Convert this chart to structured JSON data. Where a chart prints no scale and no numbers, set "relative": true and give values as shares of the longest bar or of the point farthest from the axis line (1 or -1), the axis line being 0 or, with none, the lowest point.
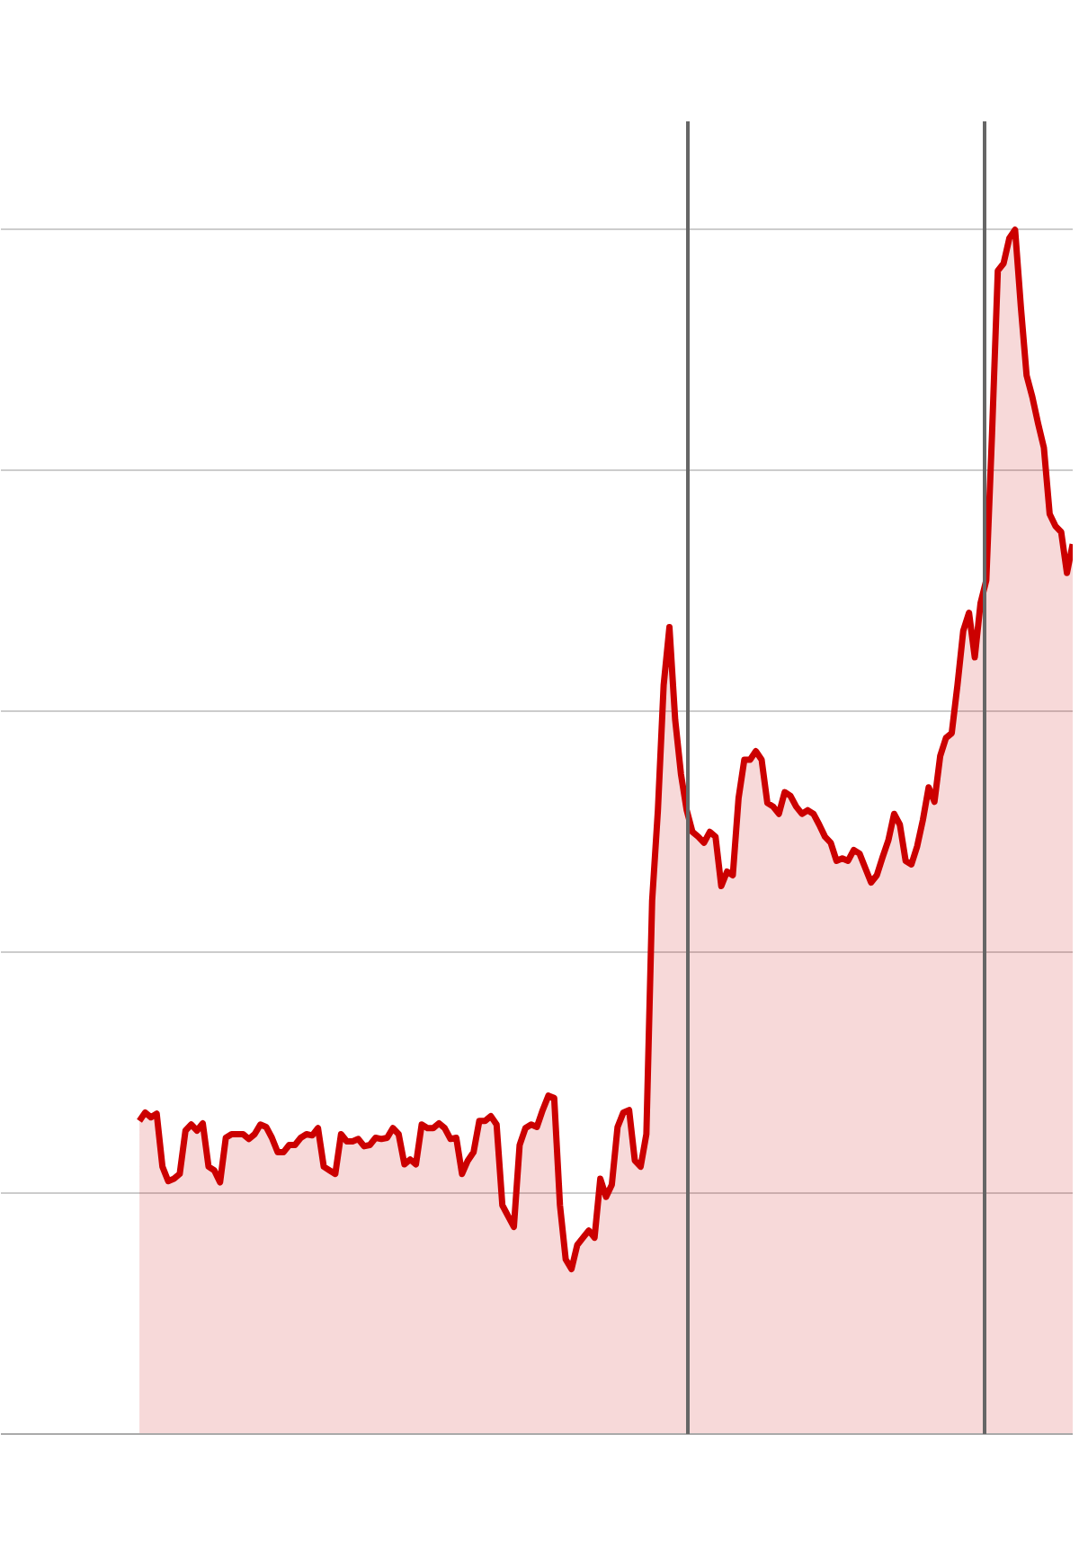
{
  "chart_data": {
    "type": "area",
    "relative": true,
    "grid": "y",
    "categories": [
      null,
      null,
      null,
      null,
      null,
      null,
      null,
      null,
      null,
      null,
      null,
      null,
      null,
      null,
      null,
      null,
      null,
      null,
      null,
      null,
      null,
      null,
      null,
      null,
      null,
      null,
      null,
      null,
      null,
      null,
      null,
      null,
      null,
      null,
      null,
      null,
      null,
      null,
      null,
      null,
      null,
      null,
      null,
      null,
      null,
      null,
      null,
      null,
      null,
      null,
      null,
      null,
      null,
      null,
      null,
      null,
      null,
      null,
      null,
      null,
      null,
      null,
      null,
      null,
      null,
      null,
      null,
      null,
      null,
      null,
      null,
      null,
      null,
      null,
      null,
      null,
      null,
      null,
      null,
      null,
      null,
      null,
      null,
      null,
      null,
      null,
      null,
      null,
      null,
      null,
      null,
      null,
      null,
      null,
      null,
      null,
      null,
      null,
      null,
      null,
      null,
      null,
      null,
      null,
      null,
      null,
      null,
      null,
      null,
      null,
      null,
      null,
      null,
      null,
      null,
      null,
      null,
      null,
      null,
      null,
      null,
      null,
      null,
      null,
      null,
      null,
      null,
      null,
      null,
      null,
      null,
      null,
      null,
      null,
      null,
      null,
      null,
      null,
      null,
      null,
      null,
      null,
      null,
      null,
      null,
      null,
      null,
      null,
      null,
      null,
      null,
      null,
      null,
      null,
      null,
      null,
      null,
      null,
      null,
      null,
      null,
      null,
      null
    ],
    "series": [
      {
        "color": "#cc0000",
        "values": [
          0.26,
          0.267,
          0.263,
          0.266,
          0.222,
          0.21,
          0.212,
          0.216,
          0.252,
          0.257,
          0.252,
          0.258,
          0.222,
          0.219,
          0.209,
          0.246,
          0.249,
          0.249,
          0.249,
          0.245,
          0.249,
          0.257,
          0.255,
          0.246,
          0.234,
          0.234,
          0.24,
          0.24,
          0.246,
          0.249,
          0.248,
          0.254,
          0.222,
          0.219,
          0.216,
          0.249,
          0.243,
          0.243,
          0.245,
          0.239,
          0.24,
          0.246,
          0.245,
          0.246,
          0.254,
          0.249,
          0.224,
          0.228,
          0.224,
          0.257,
          0.254,
          0.254,
          0.258,
          0.254,
          0.245,
          0.246,
          0.216,
          0.227,
          0.234,
          0.26,
          0.26,
          0.264,
          0.257,
          0.19,
          0.181,
          0.172,
          0.24,
          0.254,
          0.257,
          0.255,
          0.269,
          0.281,
          0.279,
          0.19,
          0.145,
          0.137,
          0.157,
          0.163,
          0.169,
          0.163,
          0.212,
          0.197,
          0.207,
          0.255,
          0.267,
          0.269,
          0.227,
          0.222,
          0.249,
          0.443,
          0.518,
          0.622,
          0.67,
          0.593,
          0.548,
          0.518,
          0.5,
          0.496,
          0.491,
          0.5,
          0.496,
          0.455,
          0.467,
          0.464,
          0.528,
          0.56,
          0.56,
          0.567,
          0.56,
          0.524,
          0.521,
          0.515,
          0.533,
          0.53,
          0.521,
          0.515,
          0.518,
          0.515,
          0.506,
          0.496,
          0.491,
          0.476,
          0.478,
          0.476,
          0.485,
          0.482,
          0.47,
          0.458,
          0.464,
          0.479,
          0.493,
          0.515,
          0.506,
          0.476,
          0.473,
          0.488,
          0.51,
          0.537,
          0.525,
          0.563,
          0.578,
          0.582,
          0.622,
          0.667,
          0.682,
          0.645,
          0.69,
          0.709,
          0.831,
          0.966,
          0.972,
          0.993,
          1,
          0.936,
          0.879,
          0.861,
          0.839,
          0.819,
          0.764,
          0.754,
          0.749,
          0.715,
          0.739
        ]
      }
    ]
  }
}
